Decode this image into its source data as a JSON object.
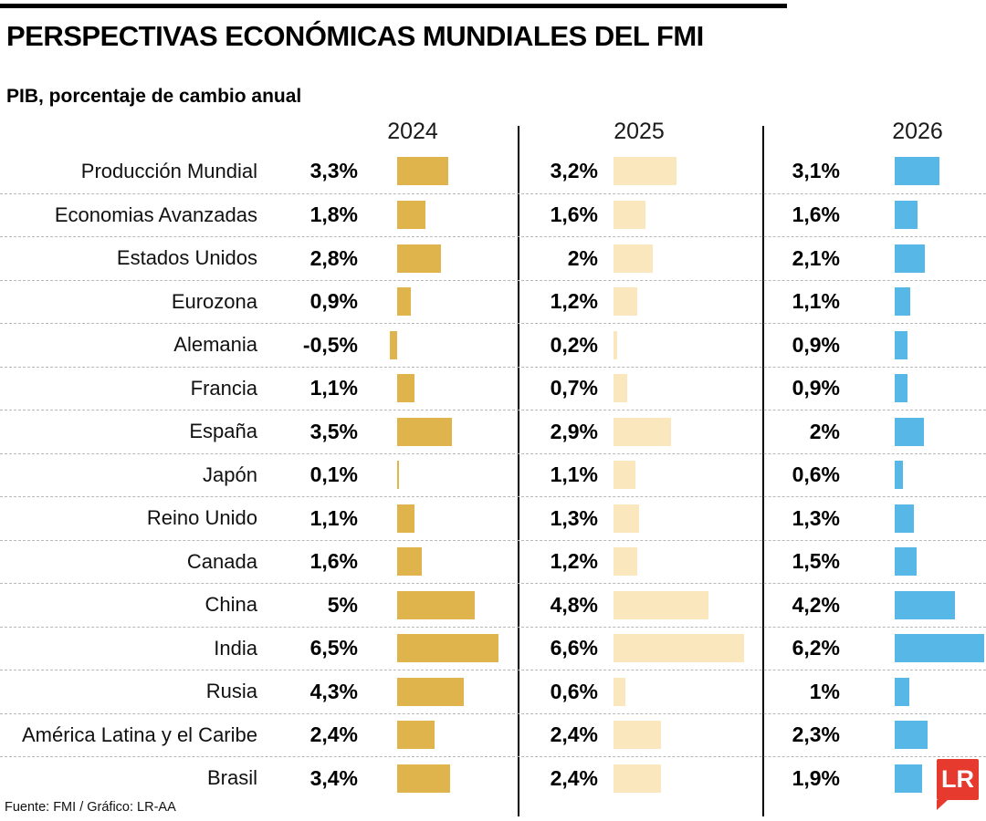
{
  "title": "PERSPECTIVAS ECONÓMICAS MUNDIALES DEL FMI",
  "subtitle": "PIB, porcentaje de cambio anual",
  "footer": {
    "source": "Fuente: FMI / Gráfico: LR-AA"
  },
  "logo": {
    "text": "LR",
    "color": "#e63a2e"
  },
  "chart_data": {
    "type": "bar",
    "title": "PERSPECTIVAS ECONÓMICAS MUNDIALES DEL FMI",
    "subtitle": "PIB, porcentaje de cambio anual",
    "xlabel": "",
    "ylabel": "PIB, porcentaje de cambio anual",
    "years": [
      "2024",
      "2025",
      "2026"
    ],
    "colors": [
      "#e0b44d",
      "#fae7bd",
      "#57b7e6"
    ],
    "grid": "dashed-row-separators",
    "legend_position": "column-headers-top",
    "categories": [
      "Producción Mundial",
      "Economias Avanzadas",
      "Estados Unidos",
      "Eurozona",
      "Alemania",
      "Francia",
      "España",
      "Japón",
      "Reino Unido",
      "Canada",
      "China",
      "India",
      "Rusia",
      "América Latina y el Caribe",
      "Brasil"
    ],
    "series": [
      {
        "name": "2024",
        "values": [
          3.3,
          1.8,
          2.8,
          0.9,
          -0.5,
          1.1,
          3.5,
          0.1,
          1.1,
          1.6,
          5,
          6.5,
          4.3,
          2.4,
          3.4
        ],
        "display": [
          "3,3%",
          "1,8%",
          "2,8%",
          "0,9%",
          "-0,5%",
          "1,1%",
          "3,5%",
          "0,1%",
          "1,1%",
          "1,6%",
          "5%",
          "6,5%",
          "4,3%",
          "2,4%",
          "3,4%"
        ]
      },
      {
        "name": "2025",
        "values": [
          3.2,
          1.6,
          2,
          1.2,
          0.2,
          0.7,
          2.9,
          1.1,
          1.3,
          1.2,
          4.8,
          6.6,
          0.6,
          2.4,
          2.4
        ],
        "display": [
          "3,2%",
          "1,6%",
          "2%",
          "1,2%",
          "0,2%",
          "0,7%",
          "2,9%",
          "1,1%",
          "1,3%",
          "1,2%",
          "4,8%",
          "6,6%",
          "0,6%",
          "2,4%",
          "2,4%"
        ]
      },
      {
        "name": "2026",
        "values": [
          3.1,
          1.6,
          2.1,
          1.1,
          0.9,
          0.9,
          2,
          0.6,
          1.3,
          1.5,
          4.2,
          6.2,
          1,
          2.3,
          1.9
        ],
        "display": [
          "3,1%",
          "1,6%",
          "2,1%",
          "1,1%",
          "0,9%",
          "0,9%",
          "2%",
          "0,6%",
          "1,3%",
          "1,5%",
          "4,2%",
          "6,2%",
          "1%",
          "2,3%",
          "1,9%"
        ]
      }
    ],
    "value_range_pct": [
      -0.5,
      6.6
    ]
  }
}
